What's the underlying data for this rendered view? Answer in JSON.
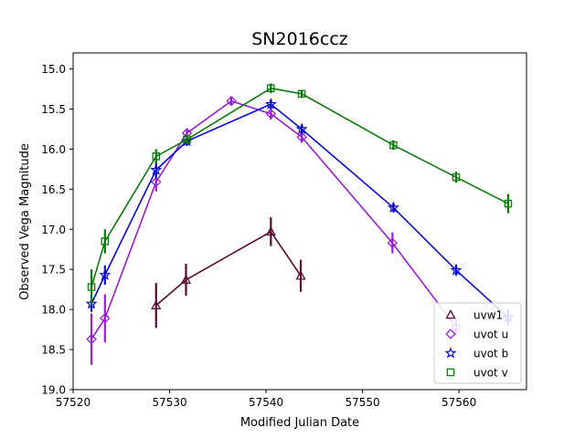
{
  "chart_data": {
    "type": "scatter",
    "title": "SN2016ccz",
    "xlabel": "Modified Julian Date",
    "ylabel": "Observed Vega Magnitude",
    "xlim": [
      57520,
      57567
    ],
    "ylim": [
      19.0,
      14.8
    ],
    "y_inverted": true,
    "xticks": [
      57520,
      57530,
      57540,
      57550,
      57560
    ],
    "yticks": [
      15.0,
      15.5,
      16.0,
      16.5,
      17.0,
      17.5,
      18.0,
      18.5,
      19.0
    ],
    "xtick_labels": [
      "57520",
      "57530",
      "57540",
      "57550",
      "57560"
    ],
    "ytick_labels": [
      "15.0",
      "15.5",
      "16.0",
      "16.5",
      "17.0",
      "17.5",
      "18.0",
      "18.5",
      "19.0"
    ],
    "grid": false,
    "legend_position": "lower-right",
    "series": [
      {
        "name": "uvw1",
        "color": "#5c0a2e",
        "marker": "triangle",
        "x": [
          57528.6,
          57531.7,
          57540.5,
          57543.6
        ],
        "y": [
          17.95,
          17.63,
          17.03,
          17.58
        ],
        "err": [
          0.28,
          0.2,
          0.18,
          0.2
        ]
      },
      {
        "name": "uvot u",
        "color": "#9a1ed6",
        "marker": "diamond",
        "x": [
          57521.9,
          57523.3,
          57528.6,
          57531.8,
          57536.4,
          57540.5,
          57543.7,
          57553.1,
          57559.7
        ],
        "y": [
          18.37,
          18.11,
          16.41,
          15.8,
          15.4,
          15.56,
          15.85,
          17.17,
          18.22
        ],
        "err": [
          0.32,
          0.3,
          0.12,
          0.05,
          0.05,
          0.07,
          0.07,
          0.13,
          0.1
        ]
      },
      {
        "name": "uvot b",
        "color": "#0a0ad4",
        "marker": "star",
        "x": [
          57521.9,
          57523.3,
          57528.6,
          57531.8,
          57540.5,
          57543.7,
          57553.2,
          57559.7,
          57565.1
        ],
        "y": [
          17.93,
          17.57,
          16.26,
          15.9,
          15.44,
          15.75,
          16.73,
          17.51,
          18.1
        ],
        "err": [
          0.1,
          0.12,
          0.1,
          0.06,
          0.06,
          0.06,
          0.06,
          0.07,
          0.1
        ]
      },
      {
        "name": "uvot v",
        "color": "#0a7a0a",
        "marker": "square",
        "x": [
          57521.9,
          57523.3,
          57528.6,
          57531.8,
          57540.5,
          57543.7,
          57553.2,
          57559.7,
          57565.1
        ],
        "y": [
          17.72,
          17.15,
          16.09,
          15.88,
          15.24,
          15.31,
          15.95,
          16.35,
          16.68
        ],
        "err": [
          0.22,
          0.15,
          0.09,
          0.06,
          0.06,
          0.05,
          0.06,
          0.07,
          0.12
        ]
      }
    ]
  }
}
